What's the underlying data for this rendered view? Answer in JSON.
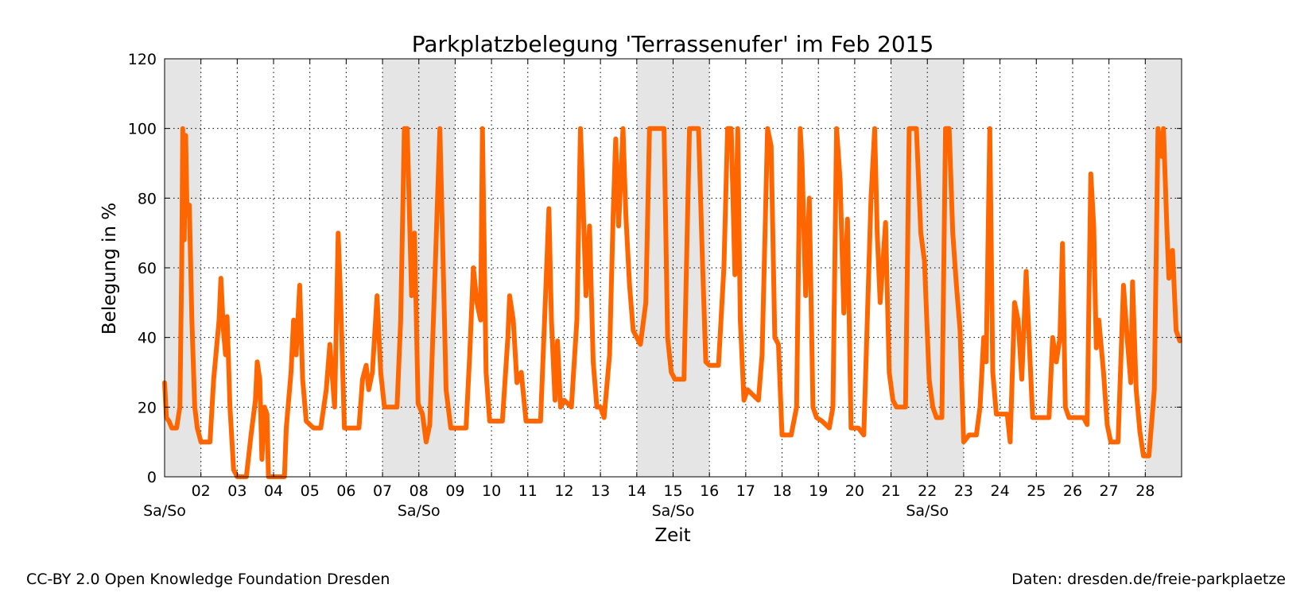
{
  "chart_data": {
    "type": "line",
    "title": "Parkplatzbelegung 'Terrassenufer' im Feb 2015",
    "xlabel": "Zeit",
    "ylabel": "Belegung in %",
    "ylim": [
      0,
      120
    ],
    "xlim_days": [
      1,
      29
    ],
    "yticks": [
      0,
      20,
      40,
      60,
      80,
      100,
      120
    ],
    "x_tick_labels": [
      "02",
      "03",
      "04",
      "05",
      "06",
      "07",
      "08",
      "09",
      "10",
      "11",
      "12",
      "13",
      "14",
      "15",
      "16",
      "17",
      "18",
      "19",
      "20",
      "21",
      "22",
      "23",
      "24",
      "25",
      "26",
      "27",
      "28"
    ],
    "weekend_label": "Sa/So",
    "weekend_days": [
      1,
      7,
      8,
      14,
      15,
      21,
      22,
      28
    ],
    "weekend_label_days": [
      1,
      8,
      15,
      22
    ],
    "grid": true,
    "line_color": "#ff6600",
    "weekend_shade_color": "#e5e5e5",
    "series": [
      {
        "name": "",
        "points": [
          [
            1.0,
            27
          ],
          [
            1.05,
            17
          ],
          [
            1.12,
            16
          ],
          [
            1.2,
            14
          ],
          [
            1.33,
            14
          ],
          [
            1.42,
            20
          ],
          [
            1.47,
            60
          ],
          [
            1.5,
            100
          ],
          [
            1.54,
            68
          ],
          [
            1.58,
            98
          ],
          [
            1.62,
            75
          ],
          [
            1.68,
            78
          ],
          [
            1.75,
            45
          ],
          [
            1.83,
            20
          ],
          [
            1.9,
            14
          ],
          [
            2.0,
            10
          ],
          [
            2.25,
            10
          ],
          [
            2.35,
            28
          ],
          [
            2.5,
            45
          ],
          [
            2.55,
            57
          ],
          [
            2.62,
            42
          ],
          [
            2.68,
            35
          ],
          [
            2.72,
            46
          ],
          [
            2.8,
            20
          ],
          [
            2.9,
            2
          ],
          [
            3.0,
            0
          ],
          [
            3.25,
            0
          ],
          [
            3.38,
            12
          ],
          [
            3.5,
            22
          ],
          [
            3.55,
            33
          ],
          [
            3.62,
            28
          ],
          [
            3.68,
            5
          ],
          [
            3.75,
            20
          ],
          [
            3.82,
            18
          ],
          [
            3.86,
            0
          ],
          [
            4.3,
            0
          ],
          [
            4.35,
            14
          ],
          [
            4.48,
            30
          ],
          [
            4.55,
            45
          ],
          [
            4.62,
            35
          ],
          [
            4.72,
            55
          ],
          [
            4.8,
            28
          ],
          [
            4.9,
            16
          ],
          [
            5.0,
            15
          ],
          [
            5.1,
            14
          ],
          [
            5.3,
            14
          ],
          [
            5.45,
            25
          ],
          [
            5.55,
            38
          ],
          [
            5.68,
            20
          ],
          [
            5.78,
            70
          ],
          [
            5.85,
            50
          ],
          [
            5.95,
            14
          ],
          [
            6.1,
            14
          ],
          [
            6.35,
            14
          ],
          [
            6.45,
            28
          ],
          [
            6.55,
            32
          ],
          [
            6.62,
            25
          ],
          [
            6.72,
            30
          ],
          [
            6.85,
            52
          ],
          [
            6.95,
            30
          ],
          [
            7.05,
            20
          ],
          [
            7.4,
            20
          ],
          [
            7.5,
            45
          ],
          [
            7.6,
            100
          ],
          [
            7.68,
            100
          ],
          [
            7.8,
            52
          ],
          [
            7.88,
            70
          ],
          [
            7.98,
            21
          ],
          [
            8.1,
            18
          ],
          [
            8.2,
            10
          ],
          [
            8.3,
            15
          ],
          [
            8.45,
            60
          ],
          [
            8.58,
            100
          ],
          [
            8.65,
            70
          ],
          [
            8.75,
            25
          ],
          [
            8.88,
            14
          ],
          [
            9.0,
            14
          ],
          [
            9.3,
            14
          ],
          [
            9.4,
            35
          ],
          [
            9.5,
            60
          ],
          [
            9.6,
            50
          ],
          [
            9.7,
            45
          ],
          [
            9.75,
            100
          ],
          [
            9.85,
            30
          ],
          [
            9.95,
            16
          ],
          [
            10.1,
            16
          ],
          [
            10.3,
            16
          ],
          [
            10.45,
            40
          ],
          [
            10.5,
            52
          ],
          [
            10.6,
            45
          ],
          [
            10.7,
            27
          ],
          [
            10.82,
            30
          ],
          [
            10.95,
            16
          ],
          [
            11.1,
            16
          ],
          [
            11.35,
            16
          ],
          [
            11.5,
            55
          ],
          [
            11.58,
            77
          ],
          [
            11.65,
            45
          ],
          [
            11.75,
            22
          ],
          [
            11.82,
            39
          ],
          [
            11.9,
            20
          ],
          [
            12.0,
            22
          ],
          [
            12.2,
            20
          ],
          [
            12.35,
            45
          ],
          [
            12.45,
            100
          ],
          [
            12.52,
            80
          ],
          [
            12.6,
            52
          ],
          [
            12.7,
            72
          ],
          [
            12.8,
            33
          ],
          [
            12.9,
            20
          ],
          [
            13.0,
            20
          ],
          [
            13.1,
            17
          ],
          [
            13.25,
            35
          ],
          [
            13.35,
            75
          ],
          [
            13.42,
            97
          ],
          [
            13.5,
            72
          ],
          [
            13.62,
            100
          ],
          [
            13.7,
            75
          ],
          [
            13.8,
            55
          ],
          [
            13.9,
            42
          ],
          [
            14.0,
            40
          ],
          [
            14.1,
            38
          ],
          [
            14.25,
            50
          ],
          [
            14.35,
            100
          ],
          [
            14.5,
            100
          ],
          [
            14.75,
            100
          ],
          [
            14.85,
            40
          ],
          [
            14.95,
            30
          ],
          [
            15.05,
            28
          ],
          [
            15.3,
            28
          ],
          [
            15.45,
            100
          ],
          [
            15.5,
            100
          ],
          [
            15.7,
            100
          ],
          [
            15.8,
            65
          ],
          [
            15.9,
            33
          ],
          [
            16.0,
            32
          ],
          [
            16.25,
            32
          ],
          [
            16.4,
            60
          ],
          [
            16.5,
            100
          ],
          [
            16.6,
            100
          ],
          [
            16.7,
            58
          ],
          [
            16.78,
            100
          ],
          [
            16.85,
            45
          ],
          [
            16.95,
            22
          ],
          [
            17.05,
            25
          ],
          [
            17.35,
            22
          ],
          [
            17.45,
            35
          ],
          [
            17.6,
            100
          ],
          [
            17.7,
            95
          ],
          [
            17.8,
            40
          ],
          [
            17.9,
            38
          ],
          [
            18.0,
            12
          ],
          [
            18.25,
            12
          ],
          [
            18.4,
            20
          ],
          [
            18.5,
            100
          ],
          [
            18.55,
            90
          ],
          [
            18.65,
            52
          ],
          [
            18.75,
            80
          ],
          [
            18.85,
            20
          ],
          [
            18.95,
            17
          ],
          [
            19.1,
            16
          ],
          [
            19.3,
            14
          ],
          [
            19.4,
            20
          ],
          [
            19.5,
            100
          ],
          [
            19.6,
            85
          ],
          [
            19.7,
            47
          ],
          [
            19.8,
            74
          ],
          [
            19.9,
            14
          ],
          [
            20.1,
            14
          ],
          [
            20.25,
            12
          ],
          [
            20.45,
            80
          ],
          [
            20.55,
            100
          ],
          [
            20.62,
            70
          ],
          [
            20.7,
            50
          ],
          [
            20.85,
            73
          ],
          [
            20.95,
            30
          ],
          [
            21.05,
            22
          ],
          [
            21.15,
            20
          ],
          [
            21.4,
            20
          ],
          [
            21.5,
            100
          ],
          [
            21.7,
            100
          ],
          [
            21.82,
            70
          ],
          [
            21.92,
            62
          ],
          [
            22.05,
            28
          ],
          [
            22.15,
            20
          ],
          [
            22.25,
            17
          ],
          [
            22.4,
            17
          ],
          [
            22.5,
            100
          ],
          [
            22.6,
            100
          ],
          [
            22.7,
            70
          ],
          [
            22.8,
            55
          ],
          [
            22.9,
            42
          ],
          [
            23.0,
            10
          ],
          [
            23.15,
            12
          ],
          [
            23.35,
            12
          ],
          [
            23.45,
            20
          ],
          [
            23.55,
            40
          ],
          [
            23.62,
            33
          ],
          [
            23.72,
            100
          ],
          [
            23.8,
            30
          ],
          [
            23.9,
            18
          ],
          [
            24.1,
            18
          ],
          [
            24.2,
            18
          ],
          [
            24.28,
            10
          ],
          [
            24.4,
            50
          ],
          [
            24.5,
            45
          ],
          [
            24.6,
            28
          ],
          [
            24.72,
            59
          ],
          [
            24.8,
            40
          ],
          [
            24.9,
            17
          ],
          [
            25.0,
            17
          ],
          [
            25.35,
            17
          ],
          [
            25.45,
            40
          ],
          [
            25.55,
            33
          ],
          [
            25.65,
            40
          ],
          [
            25.72,
            67
          ],
          [
            25.8,
            20
          ],
          [
            25.9,
            17
          ],
          [
            26.1,
            17
          ],
          [
            26.3,
            17
          ],
          [
            26.4,
            15
          ],
          [
            26.5,
            87
          ],
          [
            26.58,
            72
          ],
          [
            26.65,
            37
          ],
          [
            26.72,
            45
          ],
          [
            26.85,
            30
          ],
          [
            26.95,
            15
          ],
          [
            27.05,
            10
          ],
          [
            27.25,
            10
          ],
          [
            27.4,
            55
          ],
          [
            27.5,
            40
          ],
          [
            27.6,
            27
          ],
          [
            27.65,
            56
          ],
          [
            27.75,
            25
          ],
          [
            27.85,
            13
          ],
          [
            27.95,
            6
          ],
          [
            28.1,
            6
          ],
          [
            28.25,
            25
          ],
          [
            28.35,
            100
          ],
          [
            28.45,
            92
          ],
          [
            28.5,
            100
          ],
          [
            28.6,
            70
          ],
          [
            28.65,
            57
          ],
          [
            28.75,
            65
          ],
          [
            28.85,
            42
          ],
          [
            28.95,
            39
          ]
        ]
      }
    ]
  },
  "footer": {
    "license": "CC-BY 2.0 Open Knowledge Foundation Dresden",
    "source": "Daten: dresden.de/freie-parkplaetze"
  }
}
